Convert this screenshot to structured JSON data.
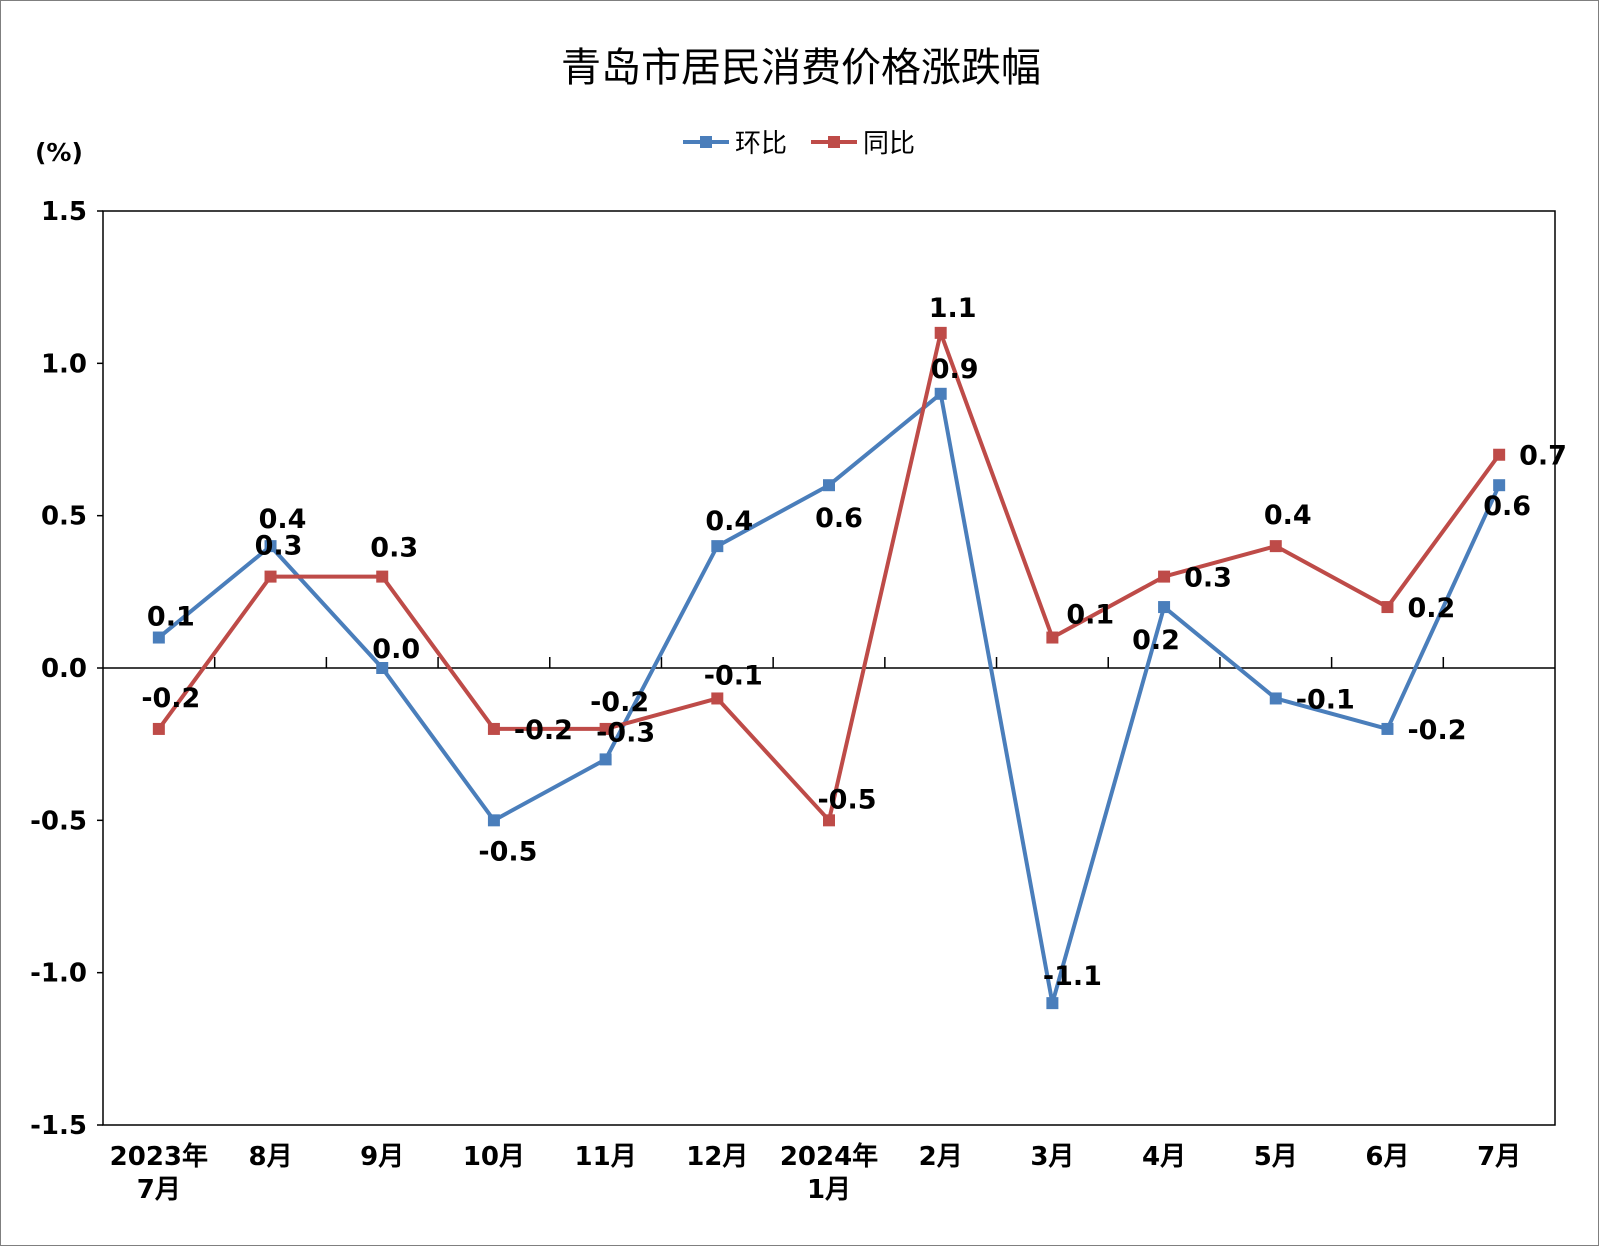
{
  "chart_data": {
    "type": "line",
    "title": "青岛市居民消费价格涨跌幅",
    "unit_label": "(%)",
    "ylim": [
      -1.5,
      1.5
    ],
    "yticks": [
      "1.5",
      "1.0",
      "0.5",
      "0.0",
      "-0.5",
      "-1.0",
      "-1.5"
    ],
    "categories": [
      [
        "2023年",
        "7月"
      ],
      [
        "8月"
      ],
      [
        "9月"
      ],
      [
        "10月"
      ],
      [
        "11月"
      ],
      [
        "12月"
      ],
      [
        "2024年",
        "1月"
      ],
      [
        "2月"
      ],
      [
        "3月"
      ],
      [
        "4月"
      ],
      [
        "5月"
      ],
      [
        "6月"
      ],
      [
        "7月"
      ]
    ],
    "legend_position": "top-center",
    "grid": false,
    "series": [
      {
        "name": "环比",
        "color": "#4a7ebb",
        "values": [
          0.1,
          0.4,
          0.0,
          -0.5,
          -0.3,
          0.4,
          0.6,
          0.9,
          -1.1,
          0.2,
          -0.1,
          -0.2,
          0.6
        ],
        "labels": [
          "0.1",
          "0.4",
          "0.0",
          "-0.5",
          "-0.3",
          "0.4",
          "0.6",
          "0.9",
          "-1.1",
          "0.2",
          "-0.1",
          "-0.2",
          "0.6"
        ]
      },
      {
        "name": "同比",
        "color": "#be4b48",
        "values": [
          -0.2,
          0.3,
          0.3,
          -0.2,
          -0.2,
          -0.1,
          -0.5,
          1.1,
          0.1,
          0.3,
          0.4,
          0.2,
          0.7
        ],
        "labels": [
          "-0.2",
          "0.3",
          "0.3",
          "-0.2",
          "-0.2",
          "-0.1",
          "-0.5",
          "1.1",
          "0.1",
          "0.3",
          "0.4",
          "0.2",
          "0.7"
        ]
      }
    ]
  }
}
